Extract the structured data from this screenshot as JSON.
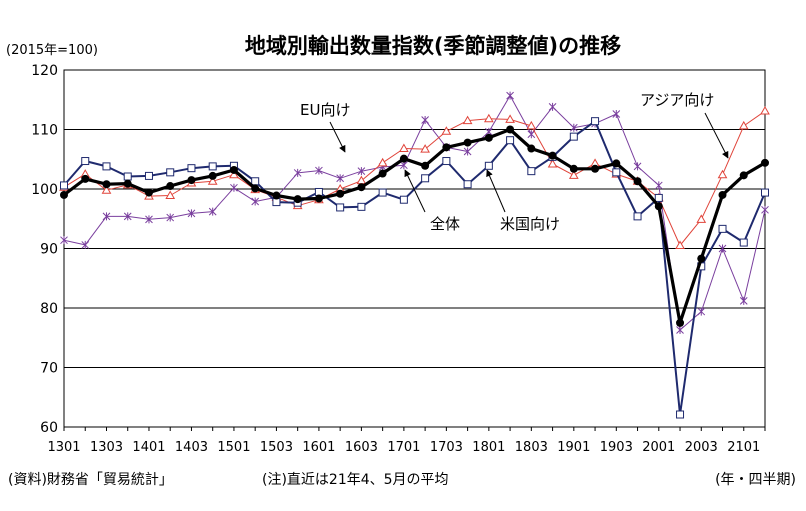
{
  "header": {
    "title": "地域別輸出数量指数(季節調整値)の推移",
    "unit": "(2015年=100)"
  },
  "footer": {
    "source": "(資料)財務省「貿易統計」",
    "note": "(注)直近は21年4、5月の平均",
    "x_unit": "(年・四半期)"
  },
  "chart_data": {
    "type": "line",
    "title": "地域別輸出数量指数(季節調整値)の推移",
    "ylabel": "(2015年=100)",
    "xlabel": "(年・四半期)",
    "ylim": [
      60,
      120
    ],
    "yticks": [
      60,
      70,
      80,
      90,
      100,
      110,
      120
    ],
    "grid": true,
    "x": [
      "1301",
      "1302",
      "1303",
      "1304",
      "1401",
      "1402",
      "1403",
      "1404",
      "1501",
      "1502",
      "1503",
      "1504",
      "1601",
      "1602",
      "1603",
      "1604",
      "1701",
      "1702",
      "1703",
      "1704",
      "1801",
      "1802",
      "1803",
      "1804",
      "1901",
      "1902",
      "1903",
      "1904",
      "2001",
      "2002",
      "2003",
      "2004",
      "2101",
      "2102"
    ],
    "xtick_labels": [
      "1301",
      "1303",
      "1401",
      "1403",
      "1501",
      "1503",
      "1601",
      "1603",
      "1701",
      "1703",
      "1801",
      "1803",
      "1901",
      "1903",
      "2001",
      "2003",
      "2101"
    ],
    "colors": {
      "total": "#000000",
      "us": "#1f2a6e",
      "eu": "#7a3f9e",
      "asia": "#e0443a"
    },
    "series": [
      {
        "name": "全体",
        "key": "total",
        "marker": "circle",
        "values": [
          99,
          101.7,
          100.8,
          100.9,
          99.4,
          100.5,
          101.5,
          102.2,
          103.2,
          100.1,
          98.9,
          98.3,
          98.4,
          99.2,
          100.3,
          102.6,
          105.1,
          103.9,
          107.0,
          107.8,
          108.6,
          110.0,
          106.8,
          105.6,
          103.4,
          103.4,
          104.3,
          101.3,
          97.1,
          77.5,
          88.3,
          99.0,
          102.3,
          104.4
        ]
      },
      {
        "name": "米国向け",
        "key": "us",
        "marker": "square",
        "values": [
          100.6,
          104.7,
          103.8,
          102.1,
          102.2,
          102.8,
          103.5,
          103.8,
          103.9,
          101.3,
          97.8,
          97.7,
          99.5,
          96.9,
          97.0,
          99.4,
          98.2,
          101.8,
          104.7,
          100.8,
          103.9,
          108.2,
          103.0,
          105.4,
          108.8,
          111.4,
          102.8,
          95.4,
          98.5,
          62.1,
          87.0,
          93.3,
          91.0,
          99.4
        ]
      },
      {
        "name": "EU向け",
        "key": "eu",
        "marker": "x",
        "values": [
          91.4,
          90.6,
          95.4,
          95.4,
          94.9,
          95.2,
          95.9,
          96.2,
          100.2,
          97.9,
          98.6,
          102.7,
          103.1,
          101.8,
          103.0,
          103.7,
          104.0,
          111.6,
          107.0,
          106.3,
          109.6,
          115.7,
          109.2,
          113.8,
          110.3,
          111.0,
          112.6,
          103.8,
          100.6,
          76.3,
          79.4,
          90.0,
          81.2,
          96.5
        ]
      },
      {
        "name": "アジア向け",
        "key": "asia",
        "marker": "triangle",
        "values": [
          100.3,
          102.5,
          99.8,
          100.7,
          98.8,
          98.9,
          101.0,
          101.3,
          102.4,
          99.9,
          98.6,
          97.2,
          98.2,
          100.0,
          101.4,
          104.4,
          106.8,
          106.7,
          109.7,
          111.5,
          111.8,
          111.7,
          110.6,
          104.2,
          102.3,
          104.3,
          102.5,
          101.3,
          98.5,
          90.5,
          94.9,
          102.4,
          110.6,
          113.1
        ]
      }
    ],
    "annotations": [
      {
        "text": "EU向け",
        "series": "eu"
      },
      {
        "text": "アジア向け",
        "series": "asia"
      },
      {
        "text": "全体",
        "series": "total"
      },
      {
        "text": "米国向け",
        "series": "us"
      }
    ]
  }
}
